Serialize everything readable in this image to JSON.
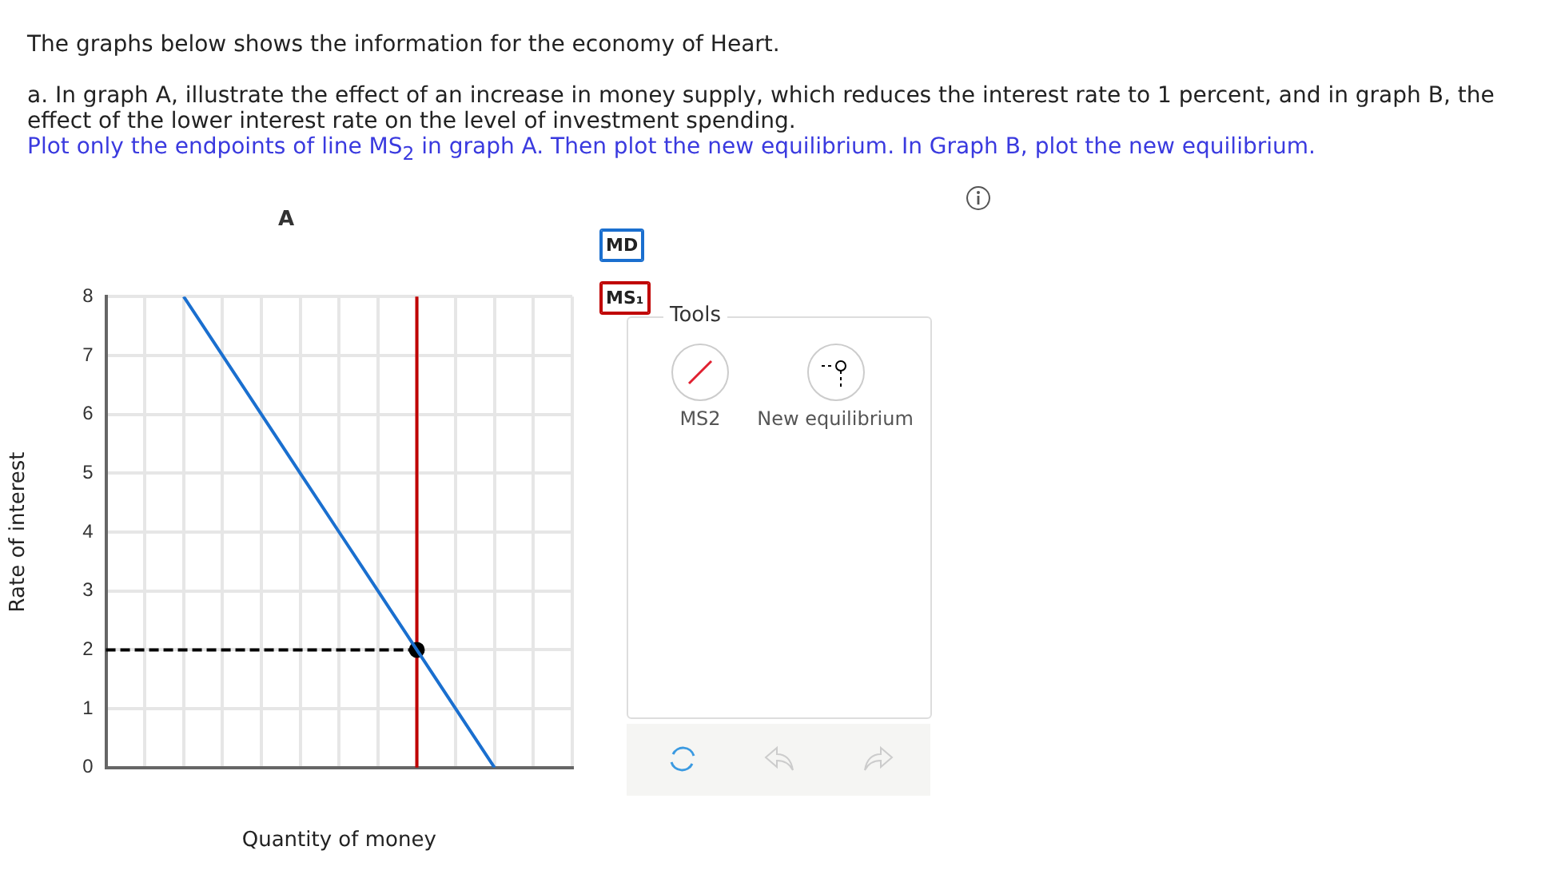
{
  "chart_data": {
    "type": "line",
    "title": "A",
    "xlabel": "Quantity of money",
    "ylabel": "Rate of interest",
    "categories": [
      null,
      null,
      null,
      null,
      null,
      null,
      null,
      null,
      null,
      null,
      null,
      null,
      null
    ],
    "ylim": [
      0,
      8
    ],
    "yticks": [
      0,
      1,
      2,
      3,
      4,
      5,
      6,
      7,
      8
    ],
    "tick_labels": "y",
    "grid": true,
    "legend": "top right",
    "series": [
      {
        "name": "MD",
        "color": "#1a6fcf",
        "values": [
          null,
          null,
          8,
          7,
          6,
          5,
          4,
          3,
          2,
          1,
          0,
          null,
          null
        ],
        "marker": "none",
        "line_style": "solid"
      },
      {
        "color": "#000000",
        "values": [
          2,
          2,
          2,
          2,
          2,
          2,
          2,
          2,
          2,
          null,
          null,
          null,
          null
        ],
        "marker": "none",
        "line_style": "dashed"
      },
      {
        "type": "scatter",
        "color": "#000000",
        "values": [
          null,
          null,
          null,
          null,
          null,
          null,
          null,
          null,
          2,
          null,
          null,
          null,
          null
        ],
        "marker": "circle"
      }
    ],
    "annotations": [
      "The graphs below shows the information for the economy of Heart.",
      "a. In graph A, illustrate the effect of an increase in money supply, which reduces the interest rate to 1 percent, and in graph B, the effect of the lower interest rate on the level of investment spending.",
      "Plot only the endpoints of line MS$_{2}$ in graph A. Then plot the new equilibrium. In Graph B, plot the new equilibrium.",
      "Tools",
      "MS2",
      "New equilibrium",
      "MS₁"
    ]
  }
}
